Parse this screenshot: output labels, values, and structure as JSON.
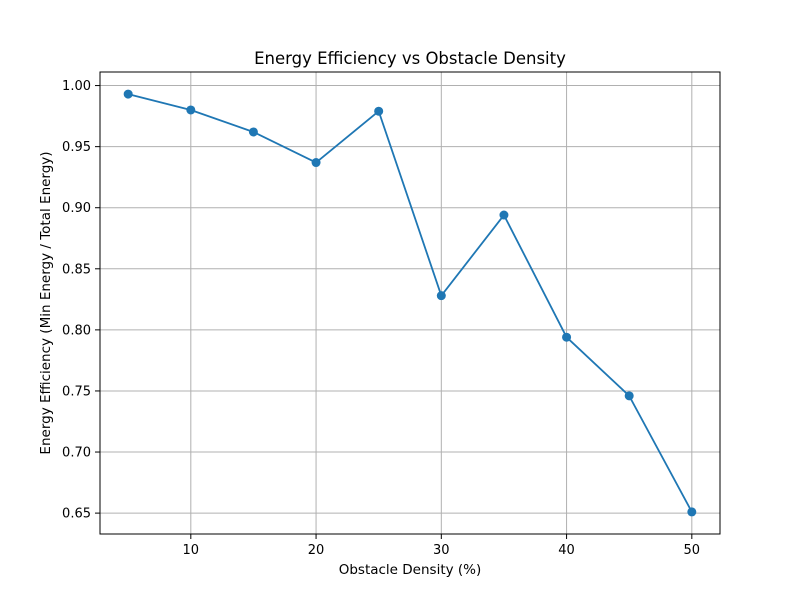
{
  "chart_data": {
    "type": "line",
    "title": "Energy Efficiency vs Obstacle Density",
    "xlabel": "Obstacle Density (%)",
    "ylabel": "Energy Efficiency (Min Energy / Total Energy)",
    "x": [
      5,
      10,
      15,
      20,
      25,
      30,
      35,
      40,
      45,
      50
    ],
    "series": [
      {
        "values": [
          0.993,
          0.98,
          0.962,
          0.937,
          0.979,
          0.828,
          0.894,
          0.794,
          0.746,
          0.651
        ],
        "color": "#1f77b4",
        "marker": "circle"
      }
    ],
    "xlim": [
      2.75,
      52.25
    ],
    "ylim": [
      0.6329,
      1.0111
    ],
    "xticks": [
      10,
      20,
      30,
      40,
      50
    ],
    "yticks": [
      0.65,
      0.7,
      0.75,
      0.8,
      0.85,
      0.9,
      0.95,
      1.0
    ],
    "xtick_labels": [
      "10",
      "20",
      "30",
      "40",
      "50"
    ],
    "ytick_labels": [
      "0.65",
      "0.70",
      "0.75",
      "0.80",
      "0.85",
      "0.90",
      "0.95",
      "1.00"
    ],
    "grid": true,
    "grid_color": "#b0b0b0"
  }
}
